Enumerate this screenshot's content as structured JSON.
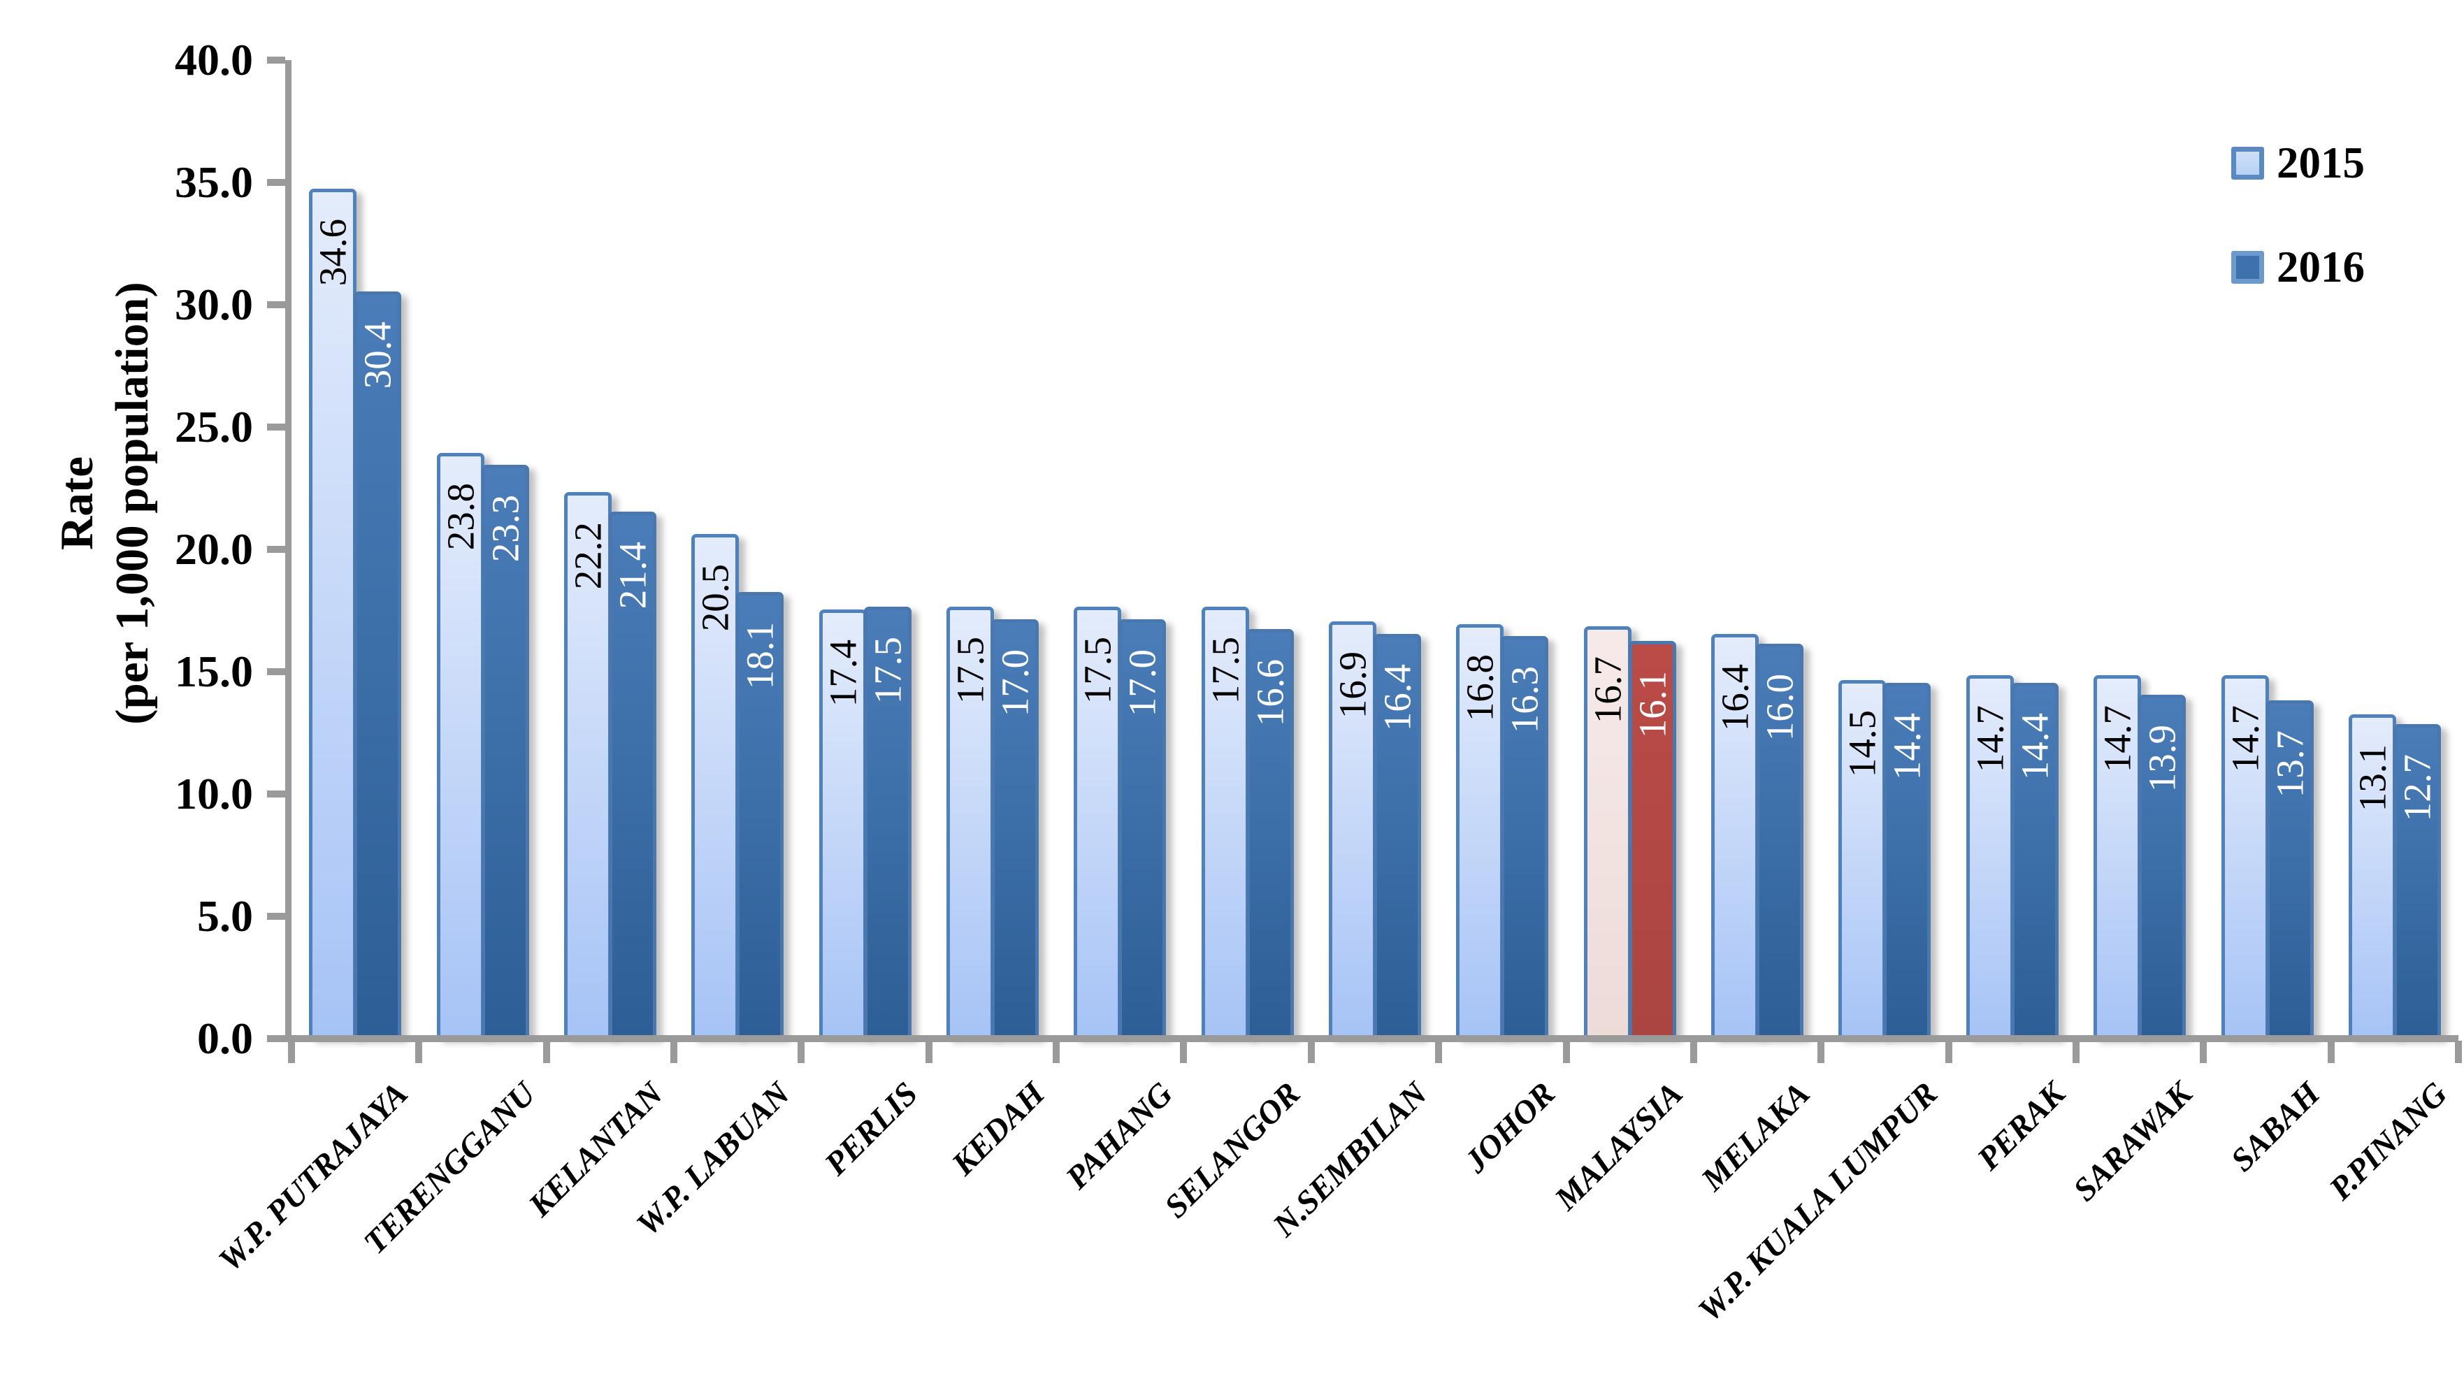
{
  "chart_data": {
    "type": "bar",
    "title": "",
    "ylabel": "Rate\n(per 1,000 population)",
    "xlabel": "",
    "ylim": [
      0,
      40
    ],
    "yticks": [
      0,
      5,
      10,
      15,
      20,
      25,
      30,
      35,
      40
    ],
    "ytick_labels": [
      "0.0",
      "5.0",
      "10.0",
      "15.0",
      "20.0",
      "25.0",
      "30.0",
      "35.0",
      "40.0"
    ],
    "grid": false,
    "legend_position": "top-right",
    "categories": [
      "W.P. PUTRAJAYA",
      "TERENGGANU",
      "KELANTAN",
      "W.P. LABUAN",
      "PERLIS",
      "KEDAH",
      "PAHANG",
      "SELANGOR",
      "N.SEMBILAN",
      "JOHOR",
      "MALAYSIA",
      "MELAKA",
      "W.P. KUALA LUMPUR",
      "PERAK",
      "SARAWAK",
      "SABAH",
      "P.PINANG"
    ],
    "series": [
      {
        "name": "2015",
        "values": [
          34.6,
          23.8,
          22.2,
          20.5,
          17.4,
          17.5,
          17.5,
          17.5,
          16.9,
          16.8,
          16.7,
          16.4,
          14.5,
          14.7,
          14.7,
          14.7,
          13.1
        ]
      },
      {
        "name": "2016",
        "values": [
          30.4,
          23.3,
          21.4,
          18.1,
          17.5,
          17.0,
          17.0,
          16.6,
          16.4,
          16.3,
          16.1,
          16.0,
          14.4,
          14.4,
          13.9,
          13.7,
          12.7
        ]
      }
    ],
    "highlight_category": "MALAYSIA",
    "value_labels_decimals": 1
  },
  "colors": {
    "bar_2015_top": "#e4ecfb",
    "bar_2015_bottom": "#a6c3f6",
    "bar_2015_border": "#4f81bd",
    "bar_2016_top": "#4a7db9",
    "bar_2016_bottom": "#2d5e95",
    "bar_2016_border": "#4a77ae",
    "highlight_2015_top": "#f6eae9",
    "highlight_2015_bottom": "#eddbd8",
    "highlight_2016_top": "#bb4b47",
    "highlight_2016_bottom": "#aa4542",
    "value_label_2015": "#000000",
    "value_label_2016": "#ffffff",
    "axis": "#9a9a9a",
    "text": "#000000",
    "legend_2015_fill_top": "#cfe0f7",
    "legend_2015_fill_bottom": "#b7d0f3",
    "legend_2015_border": "#5b8ac2",
    "legend_2016_fill": "#3d72ae",
    "legend_2016_border": "#6d99cb"
  }
}
